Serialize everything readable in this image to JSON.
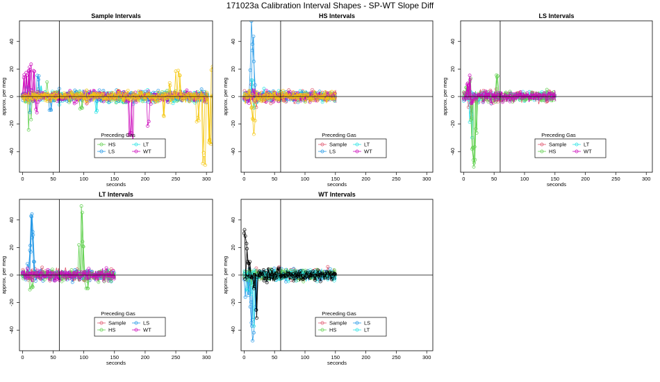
{
  "figure_title": "171023a   Calibration Interval Shapes - SP-WT Slope Diff",
  "colors": {
    "Sample": "#df536b",
    "HS": "#61d04f",
    "LS": "#2297e6",
    "LT": "#28e2e5",
    "WT": "#cd0bbc",
    "Self": "#000000",
    "Late": "#f5c710"
  },
  "chart_data": [
    {
      "type": "line",
      "title": "Sample Intervals",
      "xlabel": "seconds",
      "ylabel": "approx. per meg",
      "xlim": [
        -5,
        310
      ],
      "ylim": [
        -55,
        55
      ],
      "xticks": [
        0,
        50,
        100,
        150,
        200,
        250,
        300
      ],
      "yticks": [
        -40,
        -20,
        0,
        20,
        40
      ],
      "vline": 60,
      "hline": 0,
      "legend": {
        "title": "Preceding Gas",
        "placement": "bottom-center",
        "entries": [
          "HS",
          "LT",
          "LS",
          "WT"
        ]
      },
      "series": [
        {
          "name": "HS",
          "color_key": "HS",
          "xmax": 300,
          "spikes": [
            [
              10,
              -25
            ],
            [
              14,
              -18
            ],
            [
              40,
              12
            ],
            [
              95,
              -10
            ]
          ]
        },
        {
          "name": "LT",
          "color_key": "LT",
          "xmax": 300,
          "spikes": [
            [
              8,
              8
            ],
            [
              30,
              10
            ],
            [
              60,
              -6
            ],
            [
              120,
              -12
            ]
          ]
        },
        {
          "name": "LS",
          "color_key": "LS",
          "xmax": 300,
          "spikes": [
            [
              12,
              -14
            ],
            [
              25,
              16
            ],
            [
              45,
              -10
            ]
          ]
        },
        {
          "name": "WT",
          "color_key": "WT",
          "xmax": 300,
          "spikes": [
            [
              2,
              18
            ],
            [
              6,
              20
            ],
            [
              10,
              22
            ],
            [
              14,
              29
            ],
            [
              18,
              24
            ],
            [
              22,
              -12
            ],
            [
              180,
              -48
            ],
            [
              175,
              -30
            ],
            [
              205,
              -22
            ]
          ]
        },
        {
          "name": "",
          "color_key": "Late",
          "xmax": 310,
          "spikes": [
            [
              230,
              -15
            ],
            [
              240,
              10
            ],
            [
              250,
              23
            ],
            [
              255,
              20
            ],
            [
              285,
              -20
            ],
            [
              295,
              -50
            ],
            [
              298,
              -52
            ],
            [
              305,
              -40
            ],
            [
              309,
              24
            ]
          ]
        }
      ]
    },
    {
      "type": "line",
      "title": "HS Intervals",
      "xlabel": "seconds",
      "ylabel": "approx. per meg",
      "xlim": [
        -5,
        310
      ],
      "ylim": [
        -55,
        55
      ],
      "xticks": [
        0,
        50,
        100,
        150,
        200,
        250,
        300
      ],
      "yticks": [
        -40,
        -20,
        0,
        20,
        40
      ],
      "vline": 60,
      "hline": 0,
      "legend": {
        "title": "Preceding Gas",
        "placement": "bottom-center",
        "entries": [
          "Sample",
          "LT",
          "LS",
          "WT"
        ]
      },
      "series": [
        {
          "name": "Sample",
          "color_key": "Sample",
          "xmax": 150,
          "spikes": [
            [
              12,
              10
            ],
            [
              20,
              -8
            ]
          ]
        },
        {
          "name": "LT",
          "color_key": "LT",
          "xmax": 150,
          "spikes": [
            [
              12,
              15
            ],
            [
              16,
              -10
            ]
          ]
        },
        {
          "name": "LS",
          "color_key": "LS",
          "xmax": 150,
          "spikes": [
            [
              10,
              20
            ],
            [
              12,
              40
            ],
            [
              13,
              55
            ],
            [
              14,
              45
            ],
            [
              16,
              30
            ],
            [
              18,
              10
            ]
          ]
        },
        {
          "name": "WT",
          "color_key": "WT",
          "xmax": 150,
          "spikes": [
            [
              14,
              8
            ],
            [
              18,
              -5
            ]
          ]
        },
        {
          "name": "",
          "color_key": "Late",
          "xmax": 150,
          "spikes": [
            [
              12,
              -10
            ],
            [
              14,
              -20
            ],
            [
              16,
              -33
            ],
            [
              18,
              -18
            ]
          ]
        }
      ]
    },
    {
      "type": "line",
      "title": "LS Intervals",
      "xlabel": "seconds",
      "ylabel": "approx. per meg",
      "xlim": [
        -5,
        310
      ],
      "ylim": [
        -55,
        55
      ],
      "xticks": [
        0,
        50,
        100,
        150,
        200,
        250,
        300
      ],
      "yticks": [
        -40,
        -20,
        0,
        20,
        40
      ],
      "vline": 60,
      "hline": 0,
      "legend": {
        "title": "Preceding Gas",
        "placement": "bottom-center",
        "entries": [
          "Sample",
          "LT",
          "HS",
          "WT"
        ]
      },
      "series": [
        {
          "name": "Sample",
          "color_key": "Sample",
          "xmax": 150,
          "spikes": [
            [
              8,
              -8
            ],
            [
              12,
              -15
            ]
          ]
        },
        {
          "name": "LT",
          "color_key": "LT",
          "xmax": 150,
          "spikes": [
            [
              10,
              -20
            ],
            [
              14,
              -30
            ]
          ]
        },
        {
          "name": "HS",
          "color_key": "HS",
          "xmax": 150,
          "spikes": [
            [
              5,
              8
            ],
            [
              10,
              14
            ],
            [
              12,
              -20
            ],
            [
              14,
              -40
            ],
            [
              16,
              -52
            ],
            [
              18,
              -48
            ],
            [
              20,
              -30
            ],
            [
              55,
              17
            ]
          ]
        },
        {
          "name": "WT",
          "color_key": "WT",
          "xmax": 150,
          "spikes": [
            [
              6,
              10
            ],
            [
              10,
              16
            ],
            [
              13,
              -6
            ]
          ]
        }
      ]
    },
    {
      "type": "line",
      "title": "LT Intervals",
      "xlabel": "seconds",
      "ylabel": "approx. per meg",
      "xlim": [
        -5,
        310
      ],
      "ylim": [
        -55,
        55
      ],
      "xticks": [
        0,
        50,
        100,
        150,
        200,
        250,
        300
      ],
      "yticks": [
        -40,
        -20,
        0,
        20,
        40
      ],
      "vline": 60,
      "hline": 0,
      "legend": {
        "title": "Preceding Gas",
        "placement": "bottom-center",
        "entries": [
          "Sample",
          "LS",
          "HS",
          "WT"
        ]
      },
      "series": [
        {
          "name": "Sample",
          "color_key": "Sample",
          "xmax": 150,
          "spikes": [
            [
              15,
              4
            ]
          ]
        },
        {
          "name": "LS",
          "color_key": "LS",
          "xmax": 150,
          "spikes": [
            [
              8,
              10
            ],
            [
              12,
              22
            ],
            [
              14,
              47
            ],
            [
              16,
              32
            ],
            [
              18,
              10
            ]
          ]
        },
        {
          "name": "HS",
          "color_key": "HS",
          "xmax": 150,
          "spikes": [
            [
              12,
              -14
            ],
            [
              15,
              -10
            ],
            [
              92,
              28
            ],
            [
              96,
              52
            ],
            [
              98,
              25
            ],
            [
              105,
              -10
            ]
          ]
        },
        {
          "name": "WT",
          "color_key": "WT",
          "xmax": 150,
          "spikes": [
            [
              15,
              2
            ]
          ]
        }
      ]
    },
    {
      "type": "line",
      "title": "WT Intervals",
      "xlabel": "seconds",
      "ylabel": "approx. per meg",
      "xlim": [
        -5,
        310
      ],
      "ylim": [
        -55,
        55
      ],
      "xticks": [
        0,
        50,
        100,
        150,
        200,
        250,
        300
      ],
      "yticks": [
        -40,
        -20,
        0,
        20,
        40
      ],
      "vline": 60,
      "hline": 0,
      "legend": {
        "title": "Preceding Gas",
        "placement": "bottom-center",
        "entries": [
          "Sample",
          "LS",
          "HS",
          "LT"
        ]
      },
      "series": [
        {
          "name": "Sample",
          "color_key": "Sample",
          "xmax": 150,
          "spikes": [
            [
              10,
              -6
            ]
          ]
        },
        {
          "name": "LS",
          "color_key": "LS",
          "xmax": 150,
          "spikes": [
            [
              2,
              -20
            ],
            [
              6,
              -15
            ],
            [
              10,
              -25
            ],
            [
              13,
              -38
            ],
            [
              15,
              -55
            ],
            [
              18,
              -30
            ]
          ]
        },
        {
          "name": "HS",
          "color_key": "HS",
          "xmax": 150,
          "spikes": [
            [
              12,
              -8
            ]
          ]
        },
        {
          "name": "LT",
          "color_key": "LT",
          "xmax": 150,
          "spikes": [
            [
              5,
              -12
            ],
            [
              12,
              -18
            ],
            [
              16,
              -40
            ]
          ]
        },
        {
          "name": "",
          "color_key": "Self",
          "xmax": 150,
          "spikes": [
            [
              0,
              37
            ],
            [
              2,
              37
            ],
            [
              4,
              24
            ],
            [
              7,
              10
            ],
            [
              10,
              4
            ],
            [
              13,
              -2
            ],
            [
              16,
              -10
            ],
            [
              20,
              -33
            ],
            [
              40,
              5
            ],
            [
              55,
              5
            ],
            [
              90,
              4
            ],
            [
              110,
              2
            ],
            [
              145,
              -4
            ]
          ]
        }
      ]
    }
  ]
}
